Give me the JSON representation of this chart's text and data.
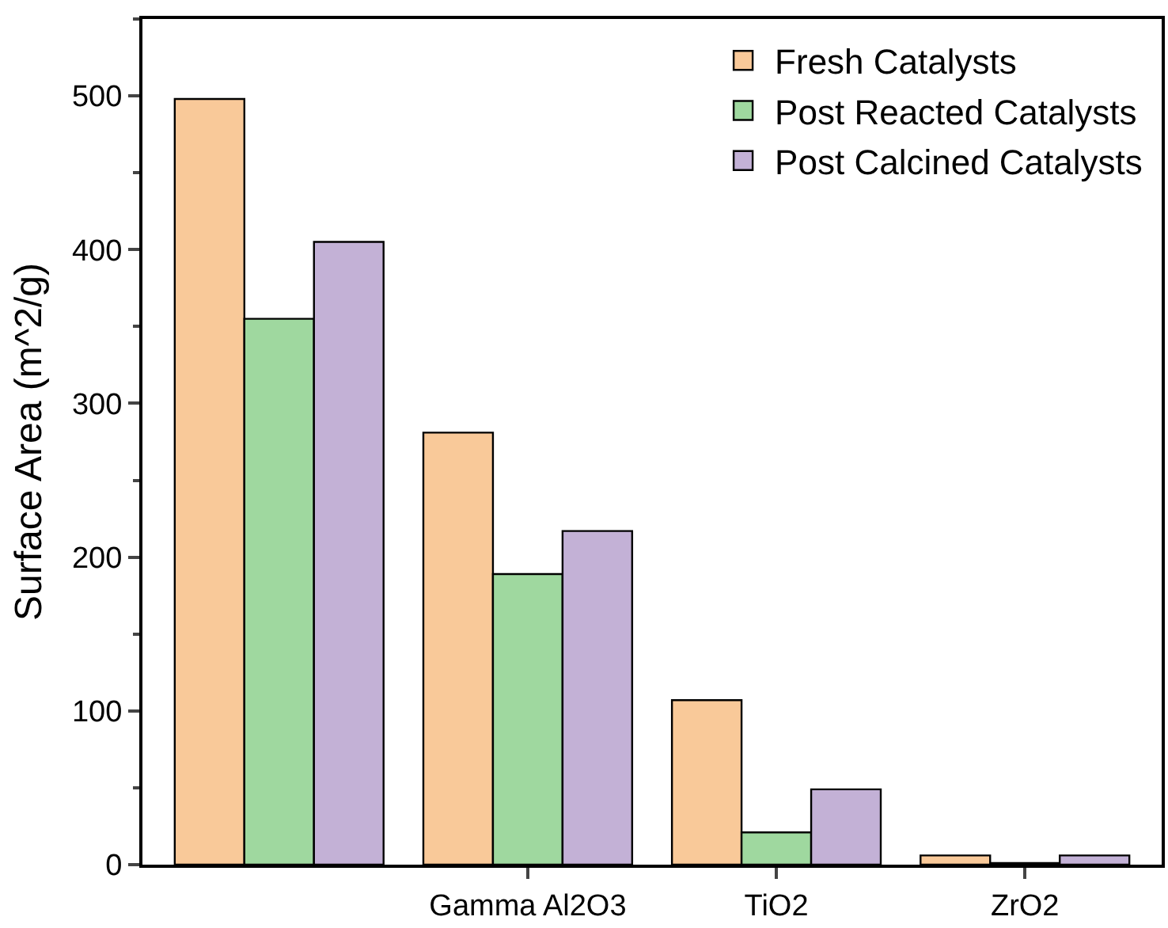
{
  "chart_data": {
    "type": "bar",
    "ylabel": "Surface Area (m^2/g)",
    "categories": [
      null,
      "Gamma Al2O3",
      "TiO2",
      "ZrO2"
    ],
    "series": [
      {
        "name": "Fresh Catalysts",
        "color": "#f9c999",
        "values": [
          498,
          281,
          107,
          6
        ]
      },
      {
        "name": "Post Reacted Catalysts",
        "color": "#9fd89f",
        "values": [
          355,
          189,
          21,
          1
        ]
      },
      {
        "name": "Post Calcined Catalysts",
        "color": "#c3b1d6",
        "values": [
          405,
          217,
          49,
          6
        ]
      }
    ],
    "ylim": [
      0,
      550
    ],
    "yticks": [
      0,
      100,
      200,
      300,
      400,
      500
    ],
    "grid": false,
    "legend": "top right"
  }
}
